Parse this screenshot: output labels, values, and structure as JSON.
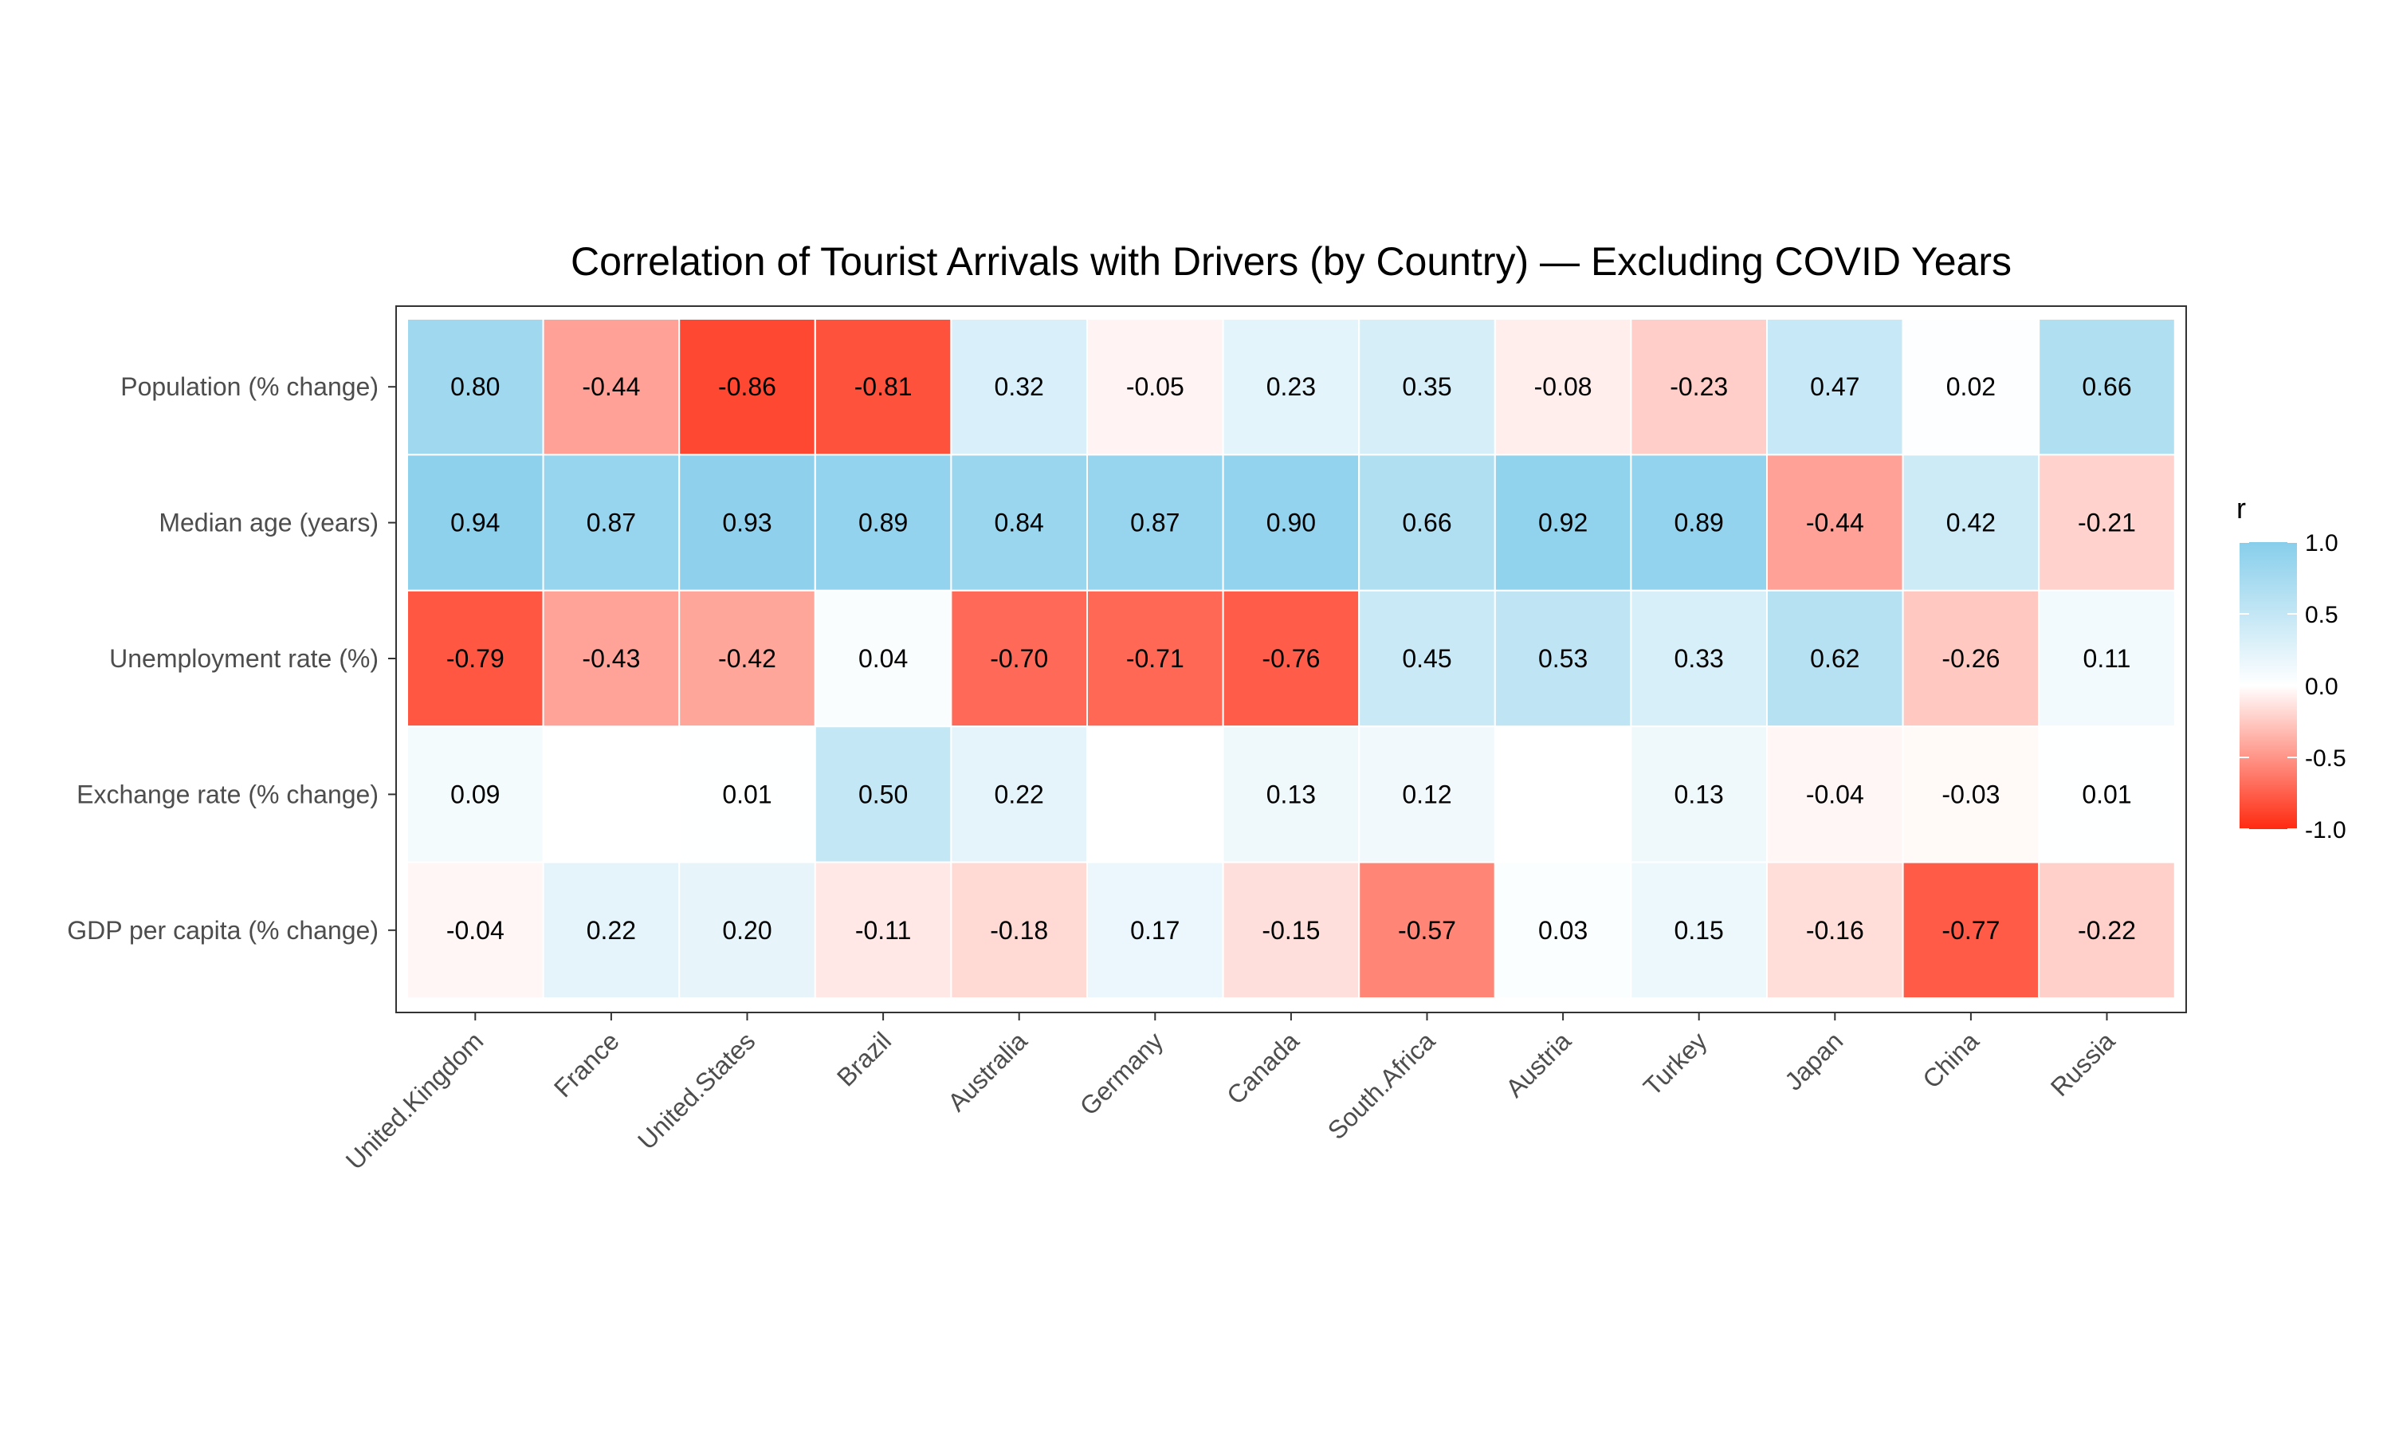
{
  "chart_data": {
    "type": "heatmap",
    "title": "Correlation of Tourist Arrivals with Drivers (by Country) — Excluding COVID Years",
    "xlabel": "",
    "ylabel": "",
    "x_categories": [
      "United.Kingdom",
      "France",
      "United.States",
      "Brazil",
      "Australia",
      "Germany",
      "Canada",
      "South.Africa",
      "Austria",
      "Turkey",
      "Japan",
      "China",
      "Russia"
    ],
    "y_categories": [
      "Population (% change)",
      "Median age (years)",
      "Unemployment rate (%)",
      "Exchange rate (% change)",
      "GDP per capita (% change)"
    ],
    "values": [
      [
        0.8,
        -0.44,
        -0.86,
        -0.81,
        0.32,
        -0.05,
        0.23,
        0.35,
        -0.08,
        -0.23,
        0.47,
        0.02,
        0.66
      ],
      [
        0.94,
        0.87,
        0.93,
        0.89,
        0.84,
        0.87,
        0.9,
        0.66,
        0.92,
        0.89,
        -0.44,
        0.42,
        -0.21
      ],
      [
        -0.79,
        -0.43,
        -0.42,
        0.04,
        -0.7,
        -0.71,
        -0.76,
        0.45,
        0.53,
        0.33,
        0.62,
        -0.26,
        0.11
      ],
      [
        0.09,
        null,
        0.01,
        0.5,
        0.22,
        null,
        0.13,
        0.12,
        null,
        0.13,
        -0.04,
        -0.03,
        0.01
      ],
      [
        -0.04,
        0.22,
        0.2,
        -0.11,
        -0.18,
        0.17,
        -0.15,
        -0.57,
        0.03,
        0.15,
        -0.16,
        -0.77,
        -0.22
      ]
    ],
    "labels": [
      [
        "0.80",
        "-0.44",
        "-0.86",
        "-0.81",
        "0.32",
        "-0.05",
        "0.23",
        "0.35",
        "-0.08",
        "-0.23",
        "0.47",
        "0.02",
        "0.66"
      ],
      [
        "0.94",
        "0.87",
        "0.93",
        "0.89",
        "0.84",
        "0.87",
        "0.90",
        "0.66",
        "0.92",
        "0.89",
        "-0.44",
        "0.42",
        "-0.21"
      ],
      [
        "-0.79",
        "-0.43",
        "-0.42",
        "0.04",
        "-0.70",
        "-0.71",
        "-0.76",
        "0.45",
        "0.53",
        "0.33",
        "0.62",
        "-0.26",
        "0.11"
      ],
      [
        "0.09",
        "",
        "0.01",
        "0.50",
        "0.22",
        "",
        "0.13",
        "0.12",
        "",
        "0.13",
        "-0.04",
        "-0.03",
        "0.01"
      ],
      [
        "-0.04",
        "0.22",
        "0.20",
        "-0.11",
        "-0.18",
        "0.17",
        "-0.15",
        "-0.57",
        "0.03",
        "0.15",
        "-0.16",
        "-0.77",
        "-0.22"
      ]
    ],
    "color_scale": {
      "min": -1.0,
      "mid": 0.0,
      "max": 1.0,
      "low_color": "#ff2a10",
      "mid_color": "#ffffff",
      "high_color": "#87ceeb"
    },
    "legend": {
      "title": "r",
      "position": "right",
      "ticks": [
        "1.0",
        "0.5",
        "0.0",
        "-0.5",
        "-1.0"
      ],
      "tick_values": [
        1.0,
        0.5,
        0.0,
        -0.5,
        -1.0
      ]
    },
    "grid": false
  }
}
